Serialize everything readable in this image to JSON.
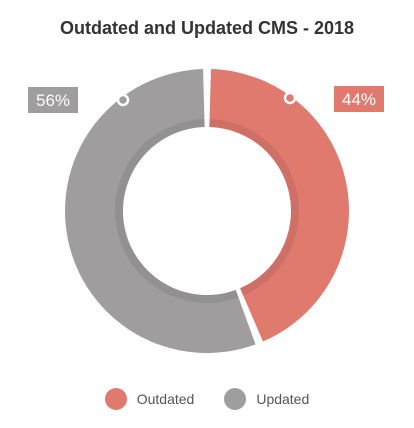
{
  "chart_data": {
    "type": "pie",
    "title": "Outdated and Updated CMS - 2018",
    "categories": [
      "Outdated",
      "Updated"
    ],
    "values": [
      44,
      56
    ],
    "value_labels": [
      "44%",
      "56%"
    ],
    "colors": [
      "#e07a6f",
      "#a09d9f"
    ],
    "legend": "bottom"
  }
}
